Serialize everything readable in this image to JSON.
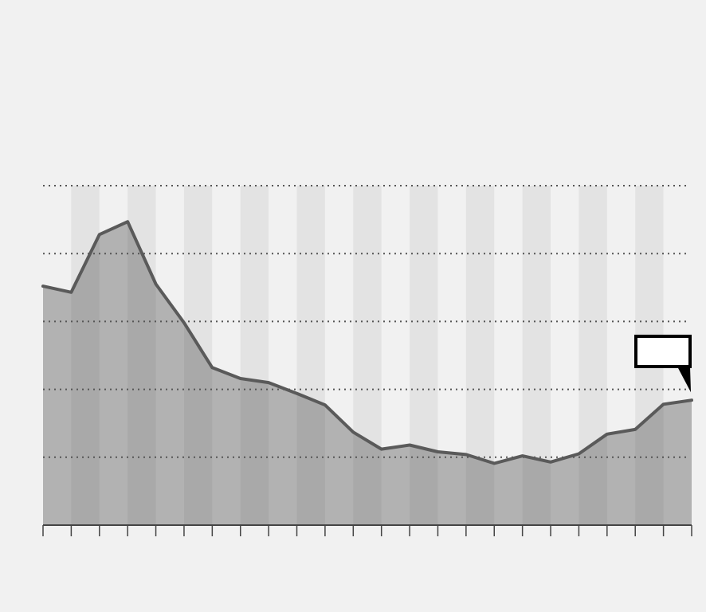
{
  "title": "",
  "subtitle_line1": "",
  "subtitle_line2": "",
  "y_caption": "",
  "source_left": "",
  "source_right": "",
  "colors": {
    "background": "#f1f1f1",
    "band_dark": "#e3e3e3",
    "band_light": "#f1f1f1",
    "area_fill": "#b2b2b2",
    "area_fill_dark": "#a9a9a9",
    "line": "#5a5a5a",
    "grid": "#555555",
    "axis": "#444444",
    "callout_border": "#000000",
    "callout_fill": "#ffffff"
  },
  "chart_data": {
    "type": "area",
    "title": "",
    "xlabel": "",
    "ylabel": "",
    "ylim": [
      0,
      5
    ],
    "y_ticks": [
      "",
      "",
      "",
      "",
      "",
      ""
    ],
    "x_ticks": [
      "",
      "",
      "",
      "",
      "",
      "",
      "",
      "",
      "",
      "",
      "",
      ""
    ],
    "grid": true,
    "grid_style": "dotted horizontal",
    "annotation_box_label": "",
    "callout_label": "",
    "x": [
      0,
      1,
      2,
      3,
      4,
      5,
      6,
      7,
      8,
      9,
      10,
      11,
      12,
      13,
      14,
      15,
      16,
      17,
      18,
      19,
      20,
      21,
      22,
      23
    ],
    "series": [
      {
        "values": [
          3.52,
          3.43,
          4.28,
          4.47,
          3.55,
          2.98,
          2.32,
          2.16,
          2.1,
          1.94,
          1.77,
          1.37,
          1.12,
          1.18,
          1.08,
          1.04,
          0.91,
          1.02,
          0.93,
          1.05,
          1.34,
          1.41,
          1.78,
          1.84
        ]
      }
    ]
  }
}
